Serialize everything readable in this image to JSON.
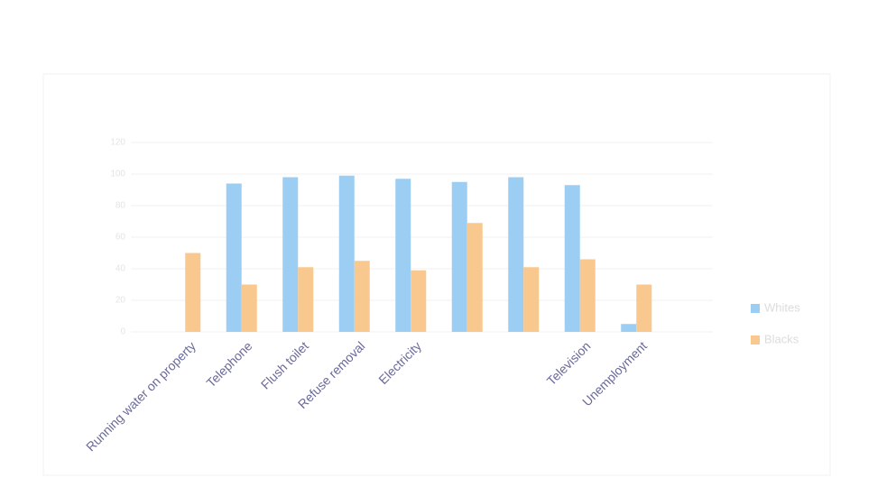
{
  "chart_data": {
    "type": "bar",
    "categories": [
      "Running water on property",
      "Telephone",
      "Flush toilet",
      "Refuse removal",
      "Electricity",
      null,
      null,
      "Television",
      "Unemployment"
    ],
    "series": [
      {
        "name": "Whites",
        "color": "#9ccdf2",
        "values": [
          null,
          94,
          98,
          99,
          97,
          95,
          98,
          93,
          5
        ]
      },
      {
        "name": "Blacks",
        "color": "#f9c88e",
        "values": [
          50,
          30,
          41,
          45,
          39,
          69,
          41,
          46,
          30
        ]
      }
    ],
    "ylim": [
      0,
      120
    ],
    "yticks": [
      0,
      20,
      40,
      60,
      80,
      100,
      120
    ],
    "grid": true,
    "legend": "right"
  }
}
